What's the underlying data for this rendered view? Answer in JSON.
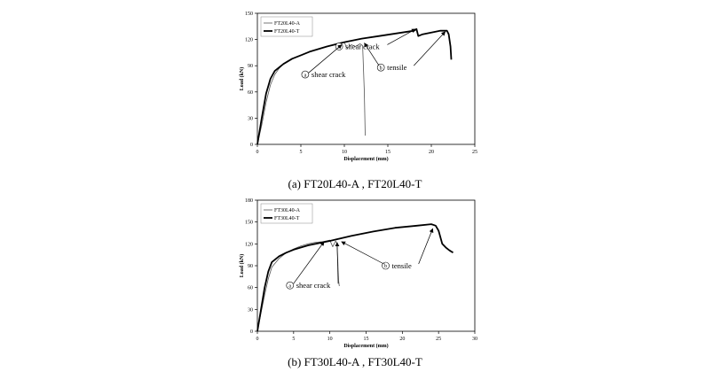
{
  "chart_data": [
    {
      "type": "line",
      "caption": "(a)  FT20L40-A  , FT20L40-T",
      "xlabel": "Displacement (mm)",
      "ylabel": "Load (kN)",
      "xlim": [
        0,
        25
      ],
      "ylim": [
        0,
        150
      ],
      "xticks": [
        0,
        5,
        10,
        15,
        20,
        25
      ],
      "yticks": [
        0,
        30,
        60,
        90,
        120,
        150
      ],
      "grid": false,
      "legend": "top-left",
      "series": [
        {
          "name": "FT20L40-A",
          "style": "thin",
          "color": "#555555",
          "points": [
            [
              0,
              0
            ],
            [
              0.5,
              22
            ],
            [
              1,
              48
            ],
            [
              1.5,
              68
            ],
            [
              2,
              80
            ],
            [
              2.5,
              87
            ],
            [
              3,
              92
            ],
            [
              4,
              98
            ],
            [
              5,
              102
            ],
            [
              6,
              106
            ],
            [
              7,
              109
            ],
            [
              8,
              112
            ],
            [
              9,
              114
            ],
            [
              9.5,
              116
            ],
            [
              10,
              117
            ],
            [
              10.3,
              110
            ],
            [
              10.8,
              114
            ],
            [
              11.3,
              112
            ],
            [
              11.8,
              115
            ],
            [
              12.1,
              113
            ],
            [
              12.3,
              60
            ],
            [
              12.4,
              10
            ]
          ]
        },
        {
          "name": "FT20L40-T",
          "style": "thick",
          "color": "#000000",
          "points": [
            [
              0,
              0
            ],
            [
              0.5,
              30
            ],
            [
              1,
              58
            ],
            [
              1.5,
              75
            ],
            [
              2,
              84
            ],
            [
              3,
              92
            ],
            [
              4,
              98
            ],
            [
              5,
              102
            ],
            [
              6,
              106
            ],
            [
              8,
              112
            ],
            [
              10,
              117
            ],
            [
              12,
              121
            ],
            [
              14,
              124
            ],
            [
              16,
              127
            ],
            [
              18,
              130
            ],
            [
              18.3,
              132
            ],
            [
              18.5,
              124
            ],
            [
              19,
              126
            ],
            [
              20,
              128
            ],
            [
              21,
              130
            ],
            [
              21.8,
              130
            ],
            [
              22,
              126
            ],
            [
              22.2,
              112
            ],
            [
              22.3,
              97
            ]
          ]
        }
      ],
      "annotations": [
        {
          "marker": "a",
          "text": "shear crack",
          "at": [
            9.4,
            112
          ],
          "arrow_to": [
            18.2,
            132
          ]
        },
        {
          "marker": "a",
          "text": "shear crack",
          "at": [
            5.5,
            80
          ],
          "arrow_to": [
            9.7,
            114
          ]
        },
        {
          "marker": "b",
          "text": "tensile",
          "at": [
            14.2,
            88
          ],
          "arrow_to": [
            12.3,
            116
          ],
          "arrow2_to": [
            21.6,
            129
          ]
        }
      ]
    },
    {
      "type": "line",
      "caption": "(b)  FT30L40-A  , FT30L40-T",
      "xlabel": "Displacement (mm)",
      "ylabel": "Load (kN)",
      "xlim": [
        0,
        30
      ],
      "ylim": [
        0,
        180
      ],
      "xticks": [
        0,
        5,
        10,
        15,
        20,
        25,
        30
      ],
      "yticks": [
        0,
        30,
        60,
        90,
        120,
        150,
        180
      ],
      "grid": false,
      "legend": "top-left",
      "series": [
        {
          "name": "FT30L40-A",
          "style": "thin",
          "color": "#555555",
          "points": [
            [
              0,
              0
            ],
            [
              0.5,
              25
            ],
            [
              1,
              50
            ],
            [
              1.5,
              72
            ],
            [
              2,
              88
            ],
            [
              3,
              100
            ],
            [
              4,
              108
            ],
            [
              5,
              113
            ],
            [
              6,
              117
            ],
            [
              7,
              120
            ],
            [
              8,
              122
            ],
            [
              9,
              123
            ],
            [
              9.5,
              124
            ],
            [
              10,
              125
            ],
            [
              10.4,
              116
            ],
            [
              10.8,
              124
            ],
            [
              11,
              120
            ],
            [
              11.2,
              70
            ],
            [
              11.3,
              62
            ]
          ]
        },
        {
          "name": "FT30L40-T",
          "style": "thick",
          "color": "#000000",
          "points": [
            [
              0,
              0
            ],
            [
              0.5,
              30
            ],
            [
              1,
              60
            ],
            [
              1.5,
              82
            ],
            [
              2,
              95
            ],
            [
              3,
              103
            ],
            [
              4,
              108
            ],
            [
              5,
              112
            ],
            [
              7,
              118
            ],
            [
              10,
              124
            ],
            [
              13,
              131
            ],
            [
              16,
              137
            ],
            [
              19,
              142
            ],
            [
              22,
              145
            ],
            [
              24,
              147
            ],
            [
              24.6,
              145
            ],
            [
              25,
              138
            ],
            [
              25.5,
              120
            ],
            [
              26,
              115
            ],
            [
              26.5,
              111
            ],
            [
              27,
              108
            ]
          ]
        }
      ],
      "annotations": [
        {
          "marker": "a",
          "text": "shear crack",
          "at": [
            4.5,
            63
          ],
          "arrow_to": [
            9.2,
            123
          ],
          "arrow2_to": [
            11.0,
            122
          ]
        },
        {
          "marker": "b",
          "text": "tensile",
          "at": [
            17.7,
            90
          ],
          "arrow_to": [
            11.6,
            123
          ],
          "arrow2_to": [
            24.2,
            141
          ]
        }
      ]
    }
  ]
}
